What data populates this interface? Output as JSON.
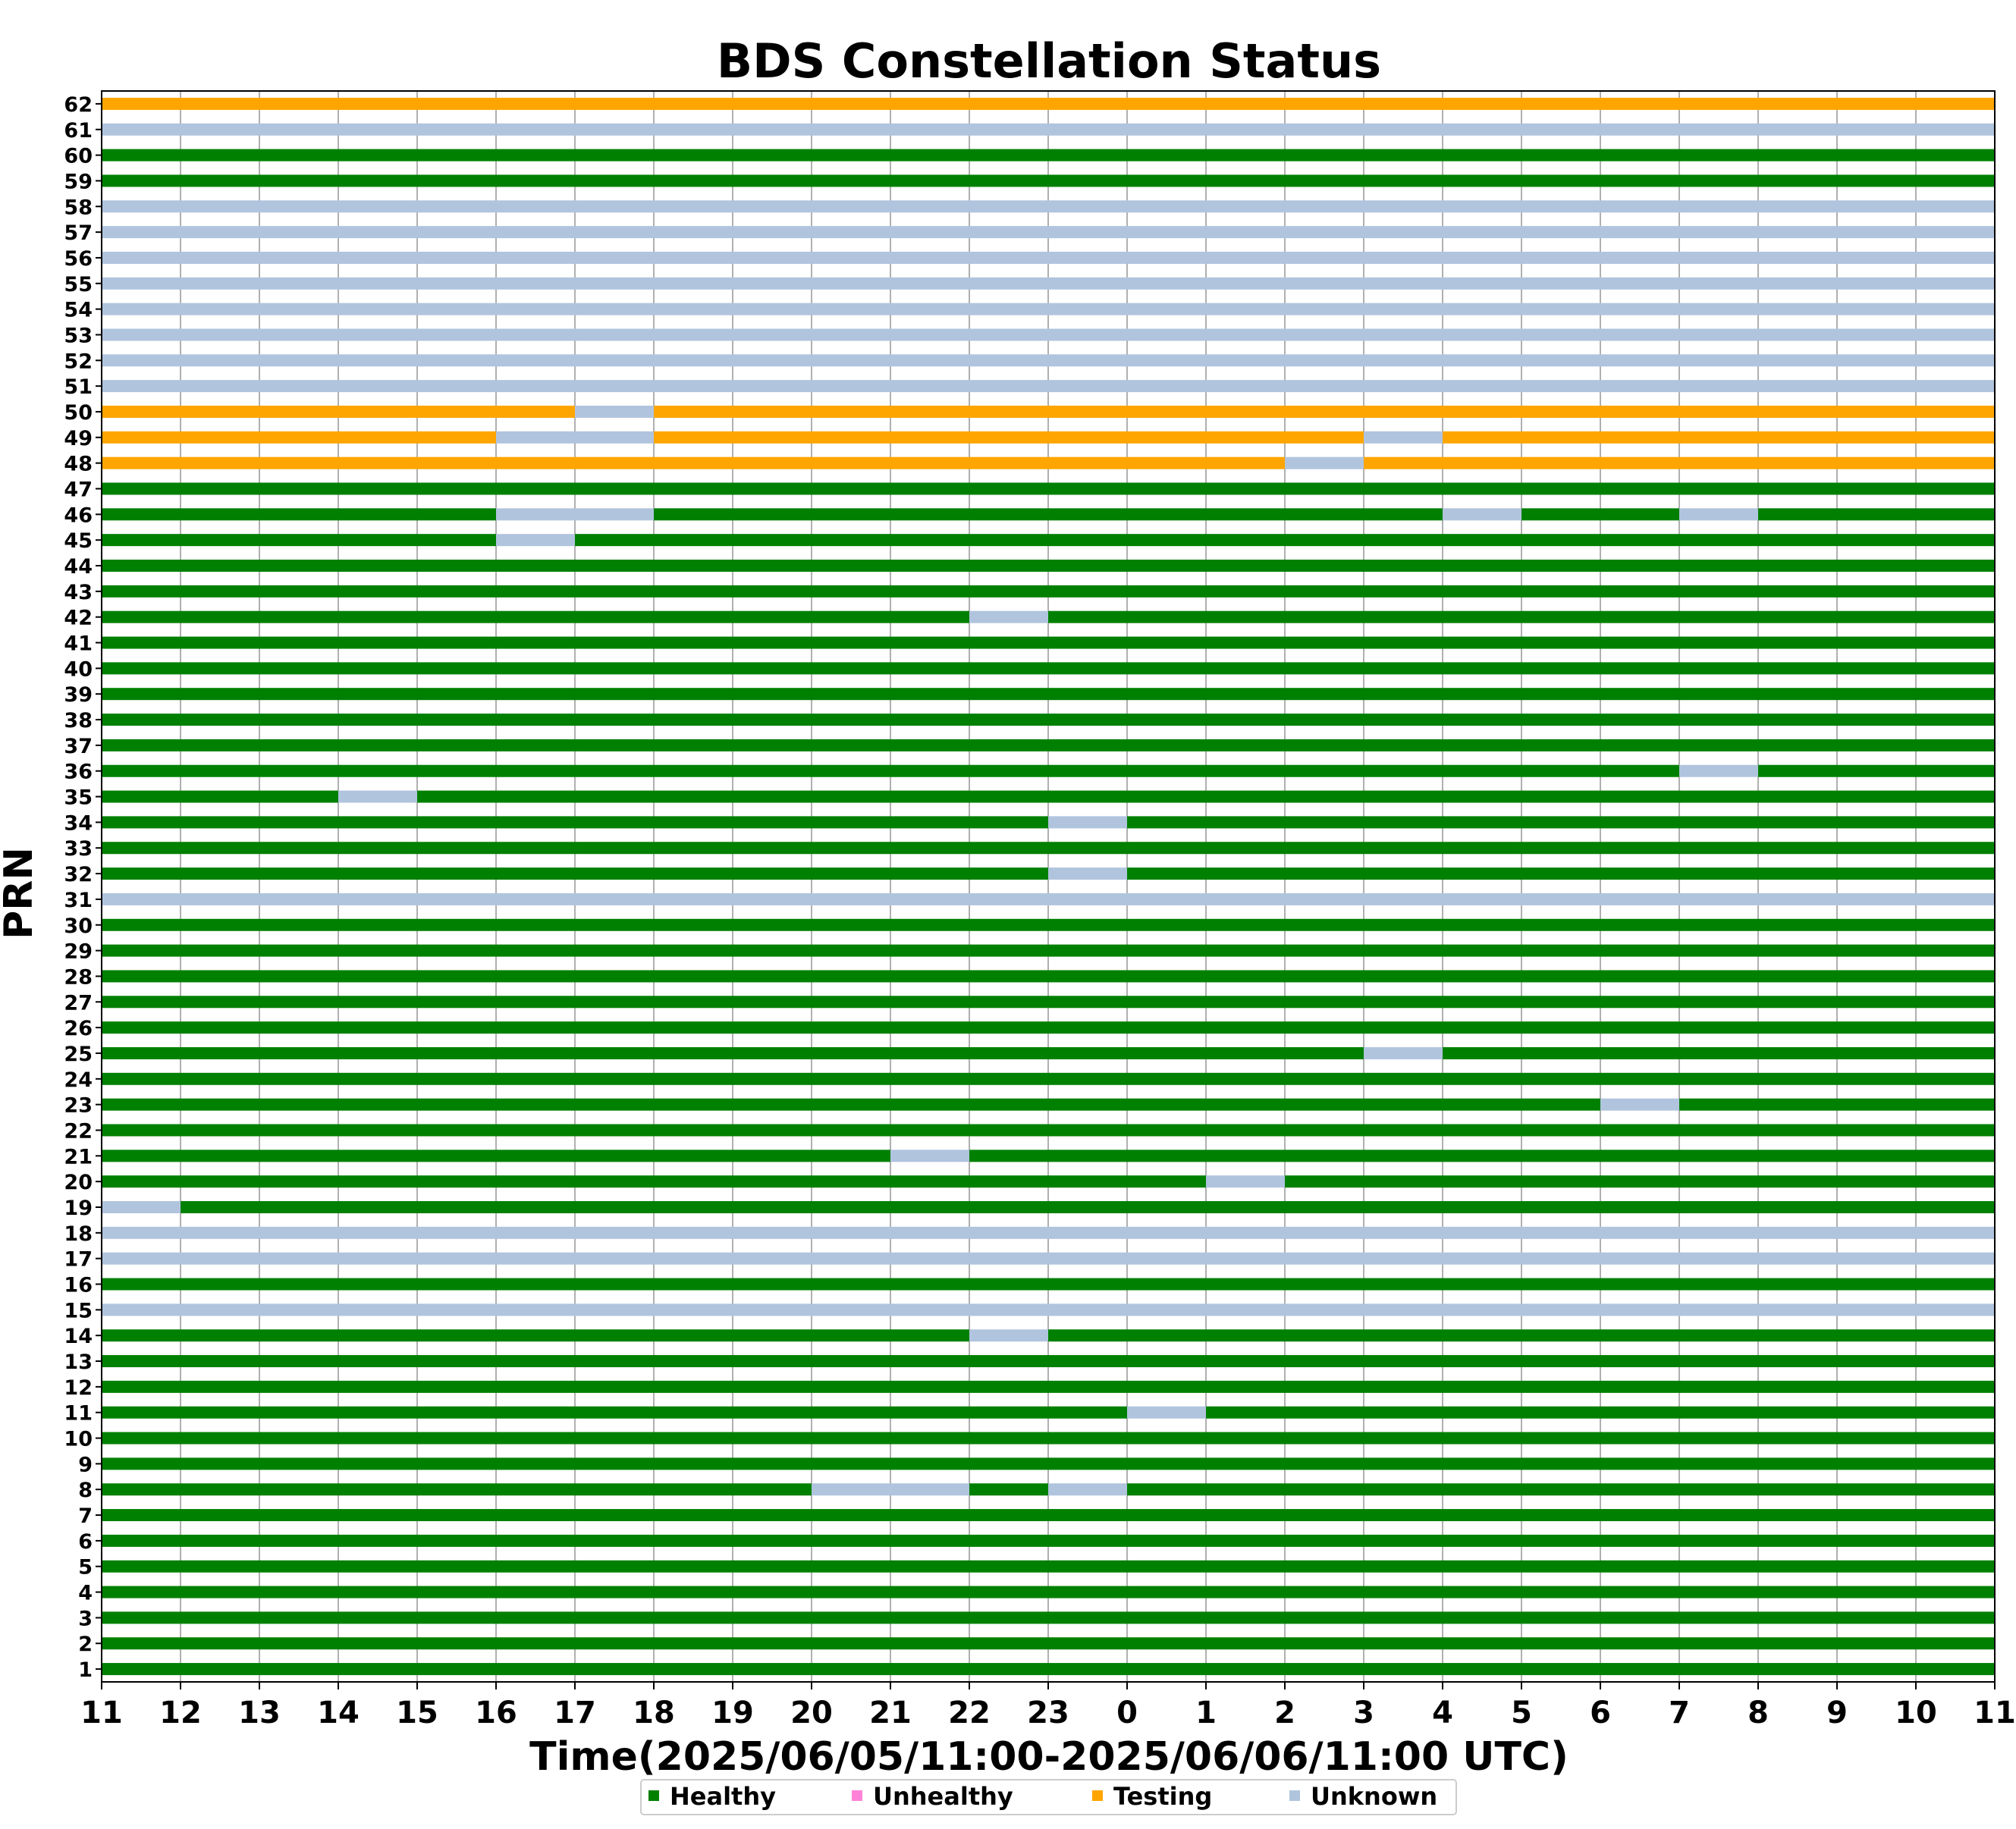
{
  "chart_data": {
    "type": "timeline",
    "title": "BDS Constellation Status",
    "xlabel": "Time(2025/06/05/11:00-2025/06/06/11:00 UTC)",
    "ylabel": "PRN",
    "x_ticks": [
      "11",
      "12",
      "13",
      "14",
      "15",
      "16",
      "17",
      "18",
      "19",
      "20",
      "21",
      "22",
      "23",
      "0",
      "1",
      "2",
      "3",
      "4",
      "5",
      "6",
      "7",
      "8",
      "9",
      "10",
      "11"
    ],
    "y_ticks": [
      "1",
      "2",
      "3",
      "4",
      "5",
      "6",
      "7",
      "8",
      "9",
      "10",
      "11",
      "12",
      "13",
      "14",
      "15",
      "16",
      "17",
      "18",
      "19",
      "20",
      "21",
      "22",
      "23",
      "24",
      "25",
      "26",
      "27",
      "28",
      "29",
      "30",
      "31",
      "32",
      "33",
      "34",
      "35",
      "36",
      "37",
      "38",
      "39",
      "40",
      "41",
      "42",
      "43",
      "44",
      "45",
      "46",
      "47",
      "48",
      "49",
      "50",
      "51",
      "52",
      "53",
      "54",
      "55",
      "56",
      "57",
      "58",
      "59",
      "60",
      "61",
      "62"
    ],
    "xlim": [
      0,
      24
    ],
    "grid": "vertical",
    "legend_position": "bottom",
    "states": [
      {
        "key": "H",
        "name": "Healthy",
        "color": "#008000"
      },
      {
        "key": "N",
        "name": "Unhealthy",
        "color": "#ff82d8"
      },
      {
        "key": "T",
        "name": "Testing",
        "color": "#ffa500"
      },
      {
        "key": "U",
        "name": "Unknown",
        "color": "#b0c4de"
      }
    ],
    "rows": [
      {
        "prn": "1",
        "segments": [
          [
            0,
            24,
            "H"
          ]
        ]
      },
      {
        "prn": "2",
        "segments": [
          [
            0,
            24,
            "H"
          ]
        ]
      },
      {
        "prn": "3",
        "segments": [
          [
            0,
            24,
            "H"
          ]
        ]
      },
      {
        "prn": "4",
        "segments": [
          [
            0,
            24,
            "H"
          ]
        ]
      },
      {
        "prn": "5",
        "segments": [
          [
            0,
            24,
            "H"
          ]
        ]
      },
      {
        "prn": "6",
        "segments": [
          [
            0,
            24,
            "H"
          ]
        ]
      },
      {
        "prn": "7",
        "segments": [
          [
            0,
            24,
            "H"
          ]
        ]
      },
      {
        "prn": "8",
        "segments": [
          [
            0,
            9,
            "H"
          ],
          [
            9,
            11,
            "U"
          ],
          [
            11,
            12,
            "H"
          ],
          [
            12,
            13,
            "U"
          ],
          [
            13,
            24,
            "H"
          ]
        ]
      },
      {
        "prn": "9",
        "segments": [
          [
            0,
            24,
            "H"
          ]
        ]
      },
      {
        "prn": "10",
        "segments": [
          [
            0,
            24,
            "H"
          ]
        ]
      },
      {
        "prn": "11",
        "segments": [
          [
            0,
            13,
            "H"
          ],
          [
            13,
            14,
            "U"
          ],
          [
            14,
            24,
            "H"
          ]
        ]
      },
      {
        "prn": "12",
        "segments": [
          [
            0,
            24,
            "H"
          ]
        ]
      },
      {
        "prn": "13",
        "segments": [
          [
            0,
            24,
            "H"
          ]
        ]
      },
      {
        "prn": "14",
        "segments": [
          [
            0,
            11,
            "H"
          ],
          [
            11,
            12,
            "U"
          ],
          [
            12,
            24,
            "H"
          ]
        ]
      },
      {
        "prn": "15",
        "segments": [
          [
            0,
            24,
            "U"
          ]
        ]
      },
      {
        "prn": "16",
        "segments": [
          [
            0,
            24,
            "H"
          ]
        ]
      },
      {
        "prn": "17",
        "segments": [
          [
            0,
            24,
            "U"
          ]
        ]
      },
      {
        "prn": "18",
        "segments": [
          [
            0,
            24,
            "U"
          ]
        ]
      },
      {
        "prn": "19",
        "segments": [
          [
            0,
            1,
            "U"
          ],
          [
            1,
            24,
            "H"
          ]
        ]
      },
      {
        "prn": "20",
        "segments": [
          [
            0,
            14,
            "H"
          ],
          [
            14,
            15,
            "U"
          ],
          [
            15,
            24,
            "H"
          ]
        ]
      },
      {
        "prn": "21",
        "segments": [
          [
            0,
            10,
            "H"
          ],
          [
            10,
            11,
            "U"
          ],
          [
            11,
            24,
            "H"
          ]
        ]
      },
      {
        "prn": "22",
        "segments": [
          [
            0,
            24,
            "H"
          ]
        ]
      },
      {
        "prn": "23",
        "segments": [
          [
            0,
            19,
            "H"
          ],
          [
            19,
            20,
            "U"
          ],
          [
            20,
            24,
            "H"
          ]
        ]
      },
      {
        "prn": "24",
        "segments": [
          [
            0,
            24,
            "H"
          ]
        ]
      },
      {
        "prn": "25",
        "segments": [
          [
            0,
            16,
            "H"
          ],
          [
            16,
            17,
            "U"
          ],
          [
            17,
            24,
            "H"
          ]
        ]
      },
      {
        "prn": "26",
        "segments": [
          [
            0,
            24,
            "H"
          ]
        ]
      },
      {
        "prn": "27",
        "segments": [
          [
            0,
            24,
            "H"
          ]
        ]
      },
      {
        "prn": "28",
        "segments": [
          [
            0,
            24,
            "H"
          ]
        ]
      },
      {
        "prn": "29",
        "segments": [
          [
            0,
            24,
            "H"
          ]
        ]
      },
      {
        "prn": "30",
        "segments": [
          [
            0,
            24,
            "H"
          ]
        ]
      },
      {
        "prn": "31",
        "segments": [
          [
            0,
            24,
            "U"
          ]
        ]
      },
      {
        "prn": "32",
        "segments": [
          [
            0,
            12,
            "H"
          ],
          [
            12,
            13,
            "U"
          ],
          [
            13,
            24,
            "H"
          ]
        ]
      },
      {
        "prn": "33",
        "segments": [
          [
            0,
            24,
            "H"
          ]
        ]
      },
      {
        "prn": "34",
        "segments": [
          [
            0,
            12,
            "H"
          ],
          [
            12,
            13,
            "U"
          ],
          [
            13,
            24,
            "H"
          ]
        ]
      },
      {
        "prn": "35",
        "segments": [
          [
            0,
            3,
            "H"
          ],
          [
            3,
            4,
            "U"
          ],
          [
            4,
            24,
            "H"
          ]
        ]
      },
      {
        "prn": "36",
        "segments": [
          [
            0,
            20,
            "H"
          ],
          [
            20,
            21,
            "U"
          ],
          [
            21,
            24,
            "H"
          ]
        ]
      },
      {
        "prn": "37",
        "segments": [
          [
            0,
            24,
            "H"
          ]
        ]
      },
      {
        "prn": "38",
        "segments": [
          [
            0,
            24,
            "H"
          ]
        ]
      },
      {
        "prn": "39",
        "segments": [
          [
            0,
            24,
            "H"
          ]
        ]
      },
      {
        "prn": "40",
        "segments": [
          [
            0,
            24,
            "H"
          ]
        ]
      },
      {
        "prn": "41",
        "segments": [
          [
            0,
            24,
            "H"
          ]
        ]
      },
      {
        "prn": "42",
        "segments": [
          [
            0,
            11,
            "H"
          ],
          [
            11,
            12,
            "U"
          ],
          [
            12,
            24,
            "H"
          ]
        ]
      },
      {
        "prn": "43",
        "segments": [
          [
            0,
            24,
            "H"
          ]
        ]
      },
      {
        "prn": "44",
        "segments": [
          [
            0,
            24,
            "H"
          ]
        ]
      },
      {
        "prn": "45",
        "segments": [
          [
            0,
            5,
            "H"
          ],
          [
            5,
            6,
            "U"
          ],
          [
            6,
            24,
            "H"
          ]
        ]
      },
      {
        "prn": "46",
        "segments": [
          [
            0,
            5,
            "H"
          ],
          [
            5,
            7,
            "U"
          ],
          [
            7,
            17,
            "H"
          ],
          [
            17,
            18,
            "U"
          ],
          [
            18,
            20,
            "H"
          ],
          [
            20,
            21,
            "U"
          ],
          [
            21,
            24,
            "H"
          ]
        ]
      },
      {
        "prn": "47",
        "segments": [
          [
            0,
            24,
            "H"
          ]
        ]
      },
      {
        "prn": "48",
        "segments": [
          [
            0,
            15,
            "T"
          ],
          [
            15,
            16,
            "U"
          ],
          [
            16,
            24,
            "T"
          ]
        ]
      },
      {
        "prn": "49",
        "segments": [
          [
            0,
            5,
            "T"
          ],
          [
            5,
            7,
            "U"
          ],
          [
            7,
            16,
            "T"
          ],
          [
            16,
            17,
            "U"
          ],
          [
            17,
            24,
            "T"
          ]
        ]
      },
      {
        "prn": "50",
        "segments": [
          [
            0,
            6,
            "T"
          ],
          [
            6,
            7,
            "U"
          ],
          [
            7,
            24,
            "T"
          ]
        ]
      },
      {
        "prn": "51",
        "segments": [
          [
            0,
            24,
            "U"
          ]
        ]
      },
      {
        "prn": "52",
        "segments": [
          [
            0,
            24,
            "U"
          ]
        ]
      },
      {
        "prn": "53",
        "segments": [
          [
            0,
            24,
            "U"
          ]
        ]
      },
      {
        "prn": "54",
        "segments": [
          [
            0,
            24,
            "U"
          ]
        ]
      },
      {
        "prn": "55",
        "segments": [
          [
            0,
            24,
            "U"
          ]
        ]
      },
      {
        "prn": "56",
        "segments": [
          [
            0,
            24,
            "U"
          ]
        ]
      },
      {
        "prn": "57",
        "segments": [
          [
            0,
            24,
            "U"
          ]
        ]
      },
      {
        "prn": "58",
        "segments": [
          [
            0,
            24,
            "U"
          ]
        ]
      },
      {
        "prn": "59",
        "segments": [
          [
            0,
            24,
            "H"
          ]
        ]
      },
      {
        "prn": "60",
        "segments": [
          [
            0,
            24,
            "H"
          ]
        ]
      },
      {
        "prn": "61",
        "segments": [
          [
            0,
            24,
            "U"
          ]
        ]
      },
      {
        "prn": "62",
        "segments": [
          [
            0,
            24,
            "T"
          ]
        ]
      }
    ]
  }
}
